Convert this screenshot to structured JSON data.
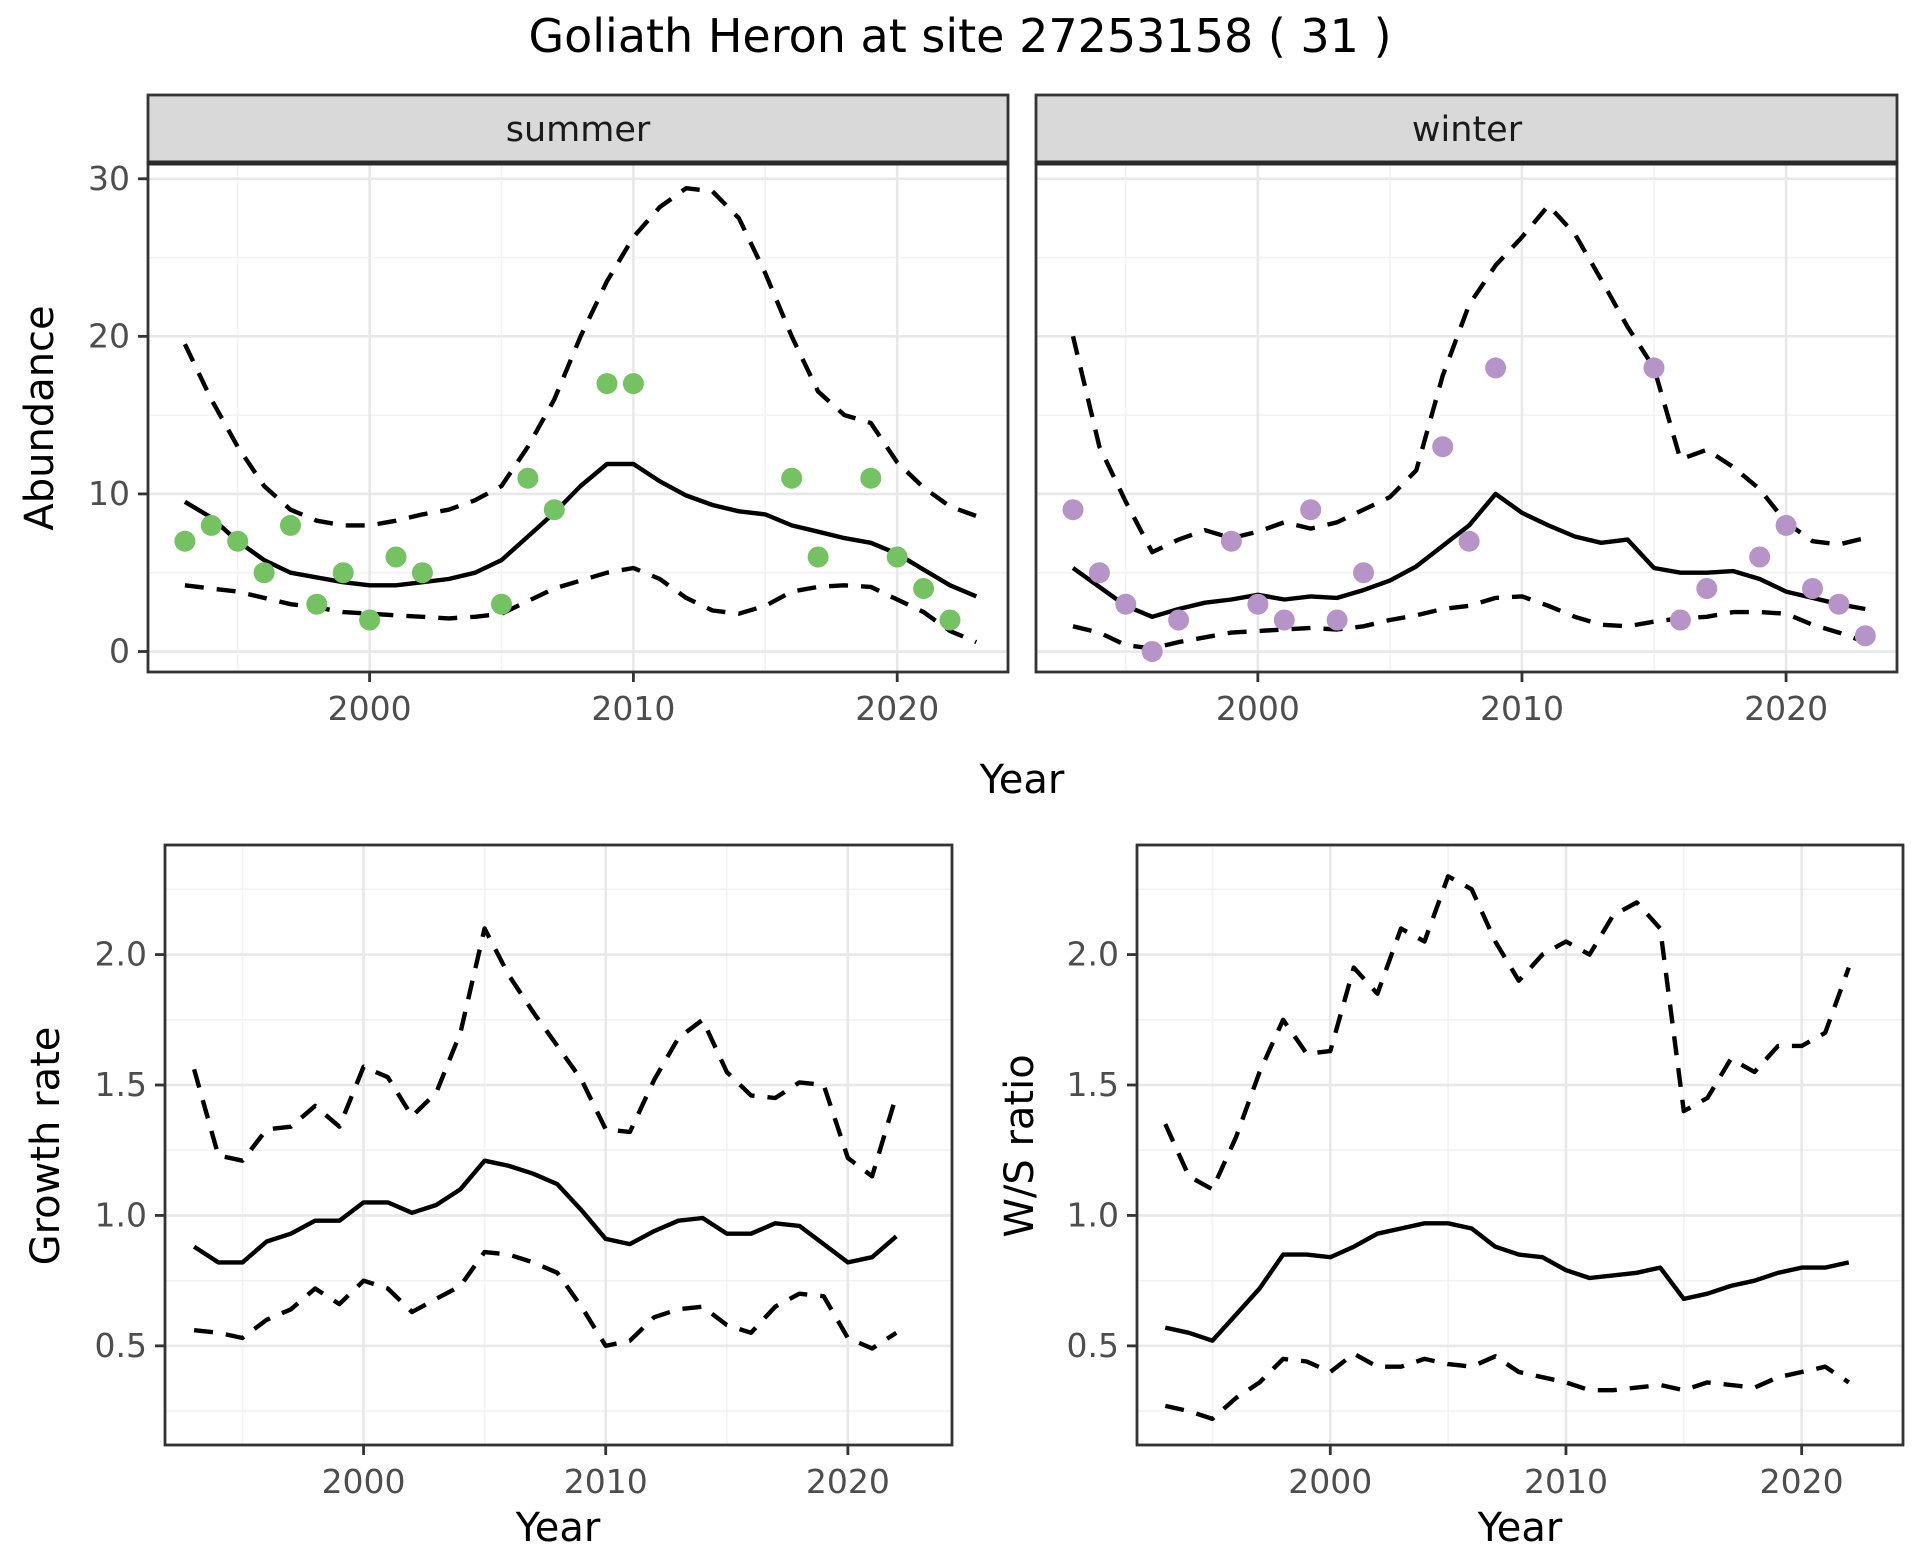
{
  "title": "Goliath Heron at site 27253158 ( 31 )",
  "colors": {
    "summer_point": "#74c262",
    "winter_point": "#b694c8",
    "line": "#000000",
    "grid_major": "#e8e8e8",
    "grid_minor": "#f2f2f2",
    "strip_bg": "#d9d9d9",
    "panel_border": "#333333",
    "tick_label": "#4d4d4d",
    "panel_bg": "#ffffff"
  },
  "chart_data": [
    {
      "id": "abundance_summer",
      "type": "line",
      "facet_label": "summer",
      "ylabel": "Abundance",
      "xlabel": "Year",
      "xlim": [
        1991.6,
        2024.2
      ],
      "ylim": [
        -1.3,
        31.0
      ],
      "x_ticks": [
        2000,
        2010,
        2020
      ],
      "x_tick_labels": [
        "2000",
        "2010",
        "2020"
      ],
      "x_minor": [
        1995,
        2005,
        2015
      ],
      "y_ticks": [
        0,
        10,
        20,
        30
      ],
      "y_tick_labels": [
        "0",
        "10",
        "20",
        "30"
      ],
      "y_minor": [
        5,
        15,
        25
      ],
      "show_y_tick_labels": true,
      "points": {
        "name": "observed abundance",
        "x": [
          1993,
          1994,
          1995,
          1996,
          1997,
          1998,
          1999,
          2000,
          2001,
          2002,
          2005,
          2006,
          2007,
          2009,
          2010,
          2016,
          2017,
          2019,
          2020,
          2021,
          2022
        ],
        "y": [
          7,
          8,
          7,
          5,
          8,
          3,
          5,
          2,
          6,
          5,
          3,
          11,
          9,
          17,
          17,
          11,
          6,
          11,
          6,
          4,
          2
        ]
      },
      "series": [
        {
          "name": "mean",
          "style": "solid",
          "x": [
            1993,
            1994,
            1995,
            1996,
            1997,
            1998,
            1999,
            2000,
            2001,
            2002,
            2003,
            2004,
            2005,
            2006,
            2007,
            2008,
            2009,
            2010,
            2011,
            2012,
            2013,
            2014,
            2015,
            2016,
            2017,
            2018,
            2019,
            2020,
            2021,
            2022,
            2023
          ],
          "y": [
            9.5,
            8.5,
            7.0,
            5.8,
            5.0,
            4.7,
            4.4,
            4.2,
            4.2,
            4.4,
            4.6,
            5.0,
            5.8,
            7.3,
            8.8,
            10.5,
            11.9,
            11.9,
            10.8,
            9.9,
            9.3,
            8.9,
            8.7,
            8.0,
            7.6,
            7.2,
            6.9,
            6.2,
            5.2,
            4.2,
            3.5
          ]
        },
        {
          "name": "upper CI",
          "style": "dashed",
          "x": [
            1993,
            1994,
            1995,
            1996,
            1997,
            1998,
            1999,
            2000,
            2001,
            2002,
            2003,
            2004,
            2005,
            2006,
            2007,
            2008,
            2009,
            2010,
            2011,
            2012,
            2013,
            2014,
            2015,
            2016,
            2017,
            2018,
            2019,
            2020,
            2021,
            2022,
            2023
          ],
          "y": [
            19.5,
            16.0,
            13.0,
            10.5,
            9.0,
            8.3,
            8.0,
            8.0,
            8.3,
            8.7,
            9.0,
            9.6,
            10.5,
            13.0,
            16.0,
            20.0,
            23.5,
            26.3,
            28.2,
            29.4,
            29.2,
            27.5,
            24.0,
            20.0,
            16.5,
            15.0,
            14.5,
            12.0,
            10.4,
            9.2,
            8.6
          ]
        },
        {
          "name": "lower CI",
          "style": "dashed",
          "x": [
            1993,
            1994,
            1995,
            1996,
            1997,
            1998,
            1999,
            2000,
            2001,
            2002,
            2003,
            2004,
            2005,
            2006,
            2007,
            2008,
            2009,
            2010,
            2011,
            2012,
            2013,
            2014,
            2015,
            2016,
            2017,
            2018,
            2019,
            2020,
            2021,
            2022,
            2023
          ],
          "y": [
            4.2,
            4.0,
            3.8,
            3.4,
            3.0,
            2.8,
            2.5,
            2.4,
            2.3,
            2.2,
            2.1,
            2.2,
            2.4,
            3.2,
            4.0,
            4.5,
            5.0,
            5.3,
            4.6,
            3.4,
            2.6,
            2.4,
            2.9,
            3.8,
            4.1,
            4.2,
            4.1,
            3.3,
            2.5,
            1.3,
            0.6
          ]
        }
      ]
    },
    {
      "id": "abundance_winter",
      "type": "line",
      "facet_label": "winter",
      "ylabel": "Abundance",
      "xlabel": "Year",
      "xlim": [
        1991.6,
        2024.2
      ],
      "ylim": [
        -1.3,
        31.0
      ],
      "x_ticks": [
        2000,
        2010,
        2020
      ],
      "x_tick_labels": [
        "2000",
        "2010",
        "2020"
      ],
      "x_minor": [
        1995,
        2005,
        2015
      ],
      "y_ticks": [
        0,
        10,
        20,
        30
      ],
      "y_tick_labels": [
        "0",
        "10",
        "20",
        "30"
      ],
      "y_minor": [
        5,
        15,
        25
      ],
      "show_y_tick_labels": false,
      "points": {
        "name": "observed abundance",
        "x": [
          1993,
          1994,
          1995,
          1996,
          1997,
          1999,
          2000,
          2001,
          2002,
          2003,
          2004,
          2007,
          2008,
          2009,
          2015,
          2016,
          2017,
          2019,
          2020,
          2021,
          2022,
          2023
        ],
        "y": [
          9,
          5,
          3,
          0,
          2,
          7,
          3,
          2,
          9,
          2,
          5,
          13,
          7,
          18,
          18,
          2,
          4,
          6,
          8,
          4,
          3,
          1
        ]
      },
      "series": [
        {
          "name": "mean",
          "style": "solid",
          "x": [
            1993,
            1994,
            1995,
            1996,
            1997,
            1998,
            1999,
            2000,
            2001,
            2002,
            2003,
            2004,
            2005,
            2006,
            2007,
            2008,
            2009,
            2010,
            2011,
            2012,
            2013,
            2014,
            2015,
            2016,
            2017,
            2018,
            2019,
            2020,
            2021,
            2022,
            2023
          ],
          "y": [
            5.3,
            4.1,
            2.9,
            2.2,
            2.7,
            3.1,
            3.3,
            3.6,
            3.3,
            3.5,
            3.4,
            3.9,
            4.5,
            5.4,
            6.7,
            8.0,
            10.0,
            8.8,
            8.0,
            7.3,
            6.9,
            7.1,
            5.3,
            5.0,
            5.0,
            5.1,
            4.6,
            3.8,
            3.4,
            3.0,
            2.7
          ]
        },
        {
          "name": "upper CI",
          "style": "dashed",
          "x": [
            1993,
            1994,
            1995,
            1996,
            1997,
            1998,
            1999,
            2000,
            2001,
            2002,
            2003,
            2004,
            2005,
            2006,
            2007,
            2008,
            2009,
            2010,
            2011,
            2012,
            2013,
            2014,
            2015,
            2016,
            2017,
            2018,
            2019,
            2020,
            2021,
            2022,
            2023
          ],
          "y": [
            20.0,
            13.0,
            9.5,
            6.3,
            7.1,
            7.7,
            7.2,
            7.6,
            8.2,
            7.8,
            8.2,
            9.0,
            9.8,
            11.5,
            17.5,
            22.0,
            24.5,
            26.3,
            28.3,
            26.5,
            23.6,
            20.6,
            18.0,
            12.2,
            12.8,
            11.7,
            10.3,
            8.2,
            7.0,
            6.8,
            7.2
          ]
        },
        {
          "name": "lower CI",
          "style": "dashed",
          "x": [
            1993,
            1994,
            1995,
            1996,
            1997,
            1998,
            1999,
            2000,
            2001,
            2002,
            2003,
            2004,
            2005,
            2006,
            2007,
            2008,
            2009,
            2010,
            2011,
            2012,
            2013,
            2014,
            2015,
            2016,
            2017,
            2018,
            2019,
            2020,
            2021,
            2022,
            2023
          ],
          "y": [
            1.6,
            1.2,
            0.4,
            0.2,
            0.6,
            0.9,
            1.2,
            1.3,
            1.4,
            1.5,
            1.4,
            1.6,
            2.0,
            2.3,
            2.7,
            2.9,
            3.4,
            3.5,
            2.9,
            2.2,
            1.7,
            1.6,
            1.9,
            2.1,
            2.2,
            2.5,
            2.5,
            2.4,
            1.7,
            1.2,
            0.6
          ]
        }
      ]
    },
    {
      "id": "growth_rate",
      "type": "line",
      "facet_label": null,
      "ylabel": "Growth rate",
      "xlabel": "Year",
      "xlim": [
        1991.8,
        2024.3
      ],
      "ylim": [
        0.12,
        2.42
      ],
      "x_ticks": [
        2000,
        2010,
        2020
      ],
      "x_tick_labels": [
        "2000",
        "2010",
        "2020"
      ],
      "x_minor": [
        1995,
        2005,
        2015
      ],
      "y_ticks": [
        0.5,
        1.0,
        1.5,
        2.0
      ],
      "y_tick_labels": [
        "0.5",
        "1.0",
        "1.5",
        "2.0"
      ],
      "y_minor": [
        0.25,
        0.75,
        1.25,
        1.75,
        2.25
      ],
      "show_y_tick_labels": true,
      "points": null,
      "series": [
        {
          "name": "mean growth rate",
          "style": "solid",
          "x": [
            1993,
            1994,
            1995,
            1996,
            1997,
            1998,
            1999,
            2000,
            2001,
            2002,
            2003,
            2004,
            2005,
            2006,
            2007,
            2008,
            2009,
            2010,
            2011,
            2012,
            2013,
            2014,
            2015,
            2016,
            2017,
            2018,
            2019,
            2020,
            2021,
            2022
          ],
          "y": [
            0.88,
            0.82,
            0.82,
            0.9,
            0.93,
            0.98,
            0.98,
            1.05,
            1.05,
            1.01,
            1.04,
            1.1,
            1.21,
            1.19,
            1.16,
            1.12,
            1.02,
            0.91,
            0.89,
            0.94,
            0.98,
            0.99,
            0.93,
            0.93,
            0.97,
            0.96,
            0.89,
            0.82,
            0.84,
            0.92
          ]
        },
        {
          "name": "upper CI",
          "style": "dashed",
          "x": [
            1993,
            1994,
            1995,
            1996,
            1997,
            1998,
            1999,
            2000,
            2001,
            2002,
            2003,
            2004,
            2005,
            2006,
            2007,
            2008,
            2009,
            2010,
            2011,
            2012,
            2013,
            2014,
            2015,
            2016,
            2017,
            2018,
            2019,
            2020,
            2021,
            2022
          ],
          "y": [
            1.56,
            1.23,
            1.21,
            1.33,
            1.34,
            1.42,
            1.34,
            1.57,
            1.53,
            1.38,
            1.47,
            1.7,
            2.1,
            1.92,
            1.78,
            1.65,
            1.52,
            1.33,
            1.32,
            1.52,
            1.68,
            1.75,
            1.55,
            1.46,
            1.45,
            1.51,
            1.5,
            1.22,
            1.15,
            1.46
          ]
        },
        {
          "name": "lower CI",
          "style": "dashed",
          "x": [
            1993,
            1994,
            1995,
            1996,
            1997,
            1998,
            1999,
            2000,
            2001,
            2002,
            2003,
            2004,
            2005,
            2006,
            2007,
            2008,
            2009,
            2010,
            2011,
            2012,
            2013,
            2014,
            2015,
            2016,
            2017,
            2018,
            2019,
            2020,
            2021,
            2022
          ],
          "y": [
            0.56,
            0.55,
            0.53,
            0.6,
            0.64,
            0.72,
            0.66,
            0.75,
            0.72,
            0.63,
            0.68,
            0.73,
            0.86,
            0.85,
            0.82,
            0.78,
            0.65,
            0.5,
            0.52,
            0.61,
            0.64,
            0.65,
            0.58,
            0.55,
            0.65,
            0.7,
            0.69,
            0.53,
            0.49,
            0.55
          ]
        }
      ]
    },
    {
      "id": "ws_ratio",
      "type": "line",
      "facet_label": null,
      "ylabel": "W/S ratio",
      "xlabel": "Year",
      "xlim": [
        1991.8,
        2024.3
      ],
      "ylim": [
        0.12,
        2.42
      ],
      "x_ticks": [
        2000,
        2010,
        2020
      ],
      "x_tick_labels": [
        "2000",
        "2010",
        "2020"
      ],
      "x_minor": [
        1995,
        2005,
        2015
      ],
      "y_ticks": [
        0.5,
        1.0,
        1.5,
        2.0
      ],
      "y_tick_labels": [
        "0.5",
        "1.0",
        "1.5",
        "2.0"
      ],
      "y_minor": [
        0.25,
        0.75,
        1.25,
        1.75,
        2.25
      ],
      "show_y_tick_labels": true,
      "points": null,
      "series": [
        {
          "name": "mean W/S ratio",
          "style": "solid",
          "x": [
            1993,
            1994,
            1995,
            1996,
            1997,
            1998,
            1999,
            2000,
            2001,
            2002,
            2003,
            2004,
            2005,
            2006,
            2007,
            2008,
            2009,
            2010,
            2011,
            2012,
            2013,
            2014,
            2015,
            2016,
            2017,
            2018,
            2019,
            2020,
            2021,
            2022
          ],
          "y": [
            0.57,
            0.55,
            0.52,
            0.62,
            0.72,
            0.85,
            0.85,
            0.84,
            0.88,
            0.93,
            0.95,
            0.97,
            0.97,
            0.95,
            0.88,
            0.85,
            0.84,
            0.79,
            0.76,
            0.77,
            0.78,
            0.8,
            0.68,
            0.7,
            0.73,
            0.75,
            0.78,
            0.8,
            0.8,
            0.82
          ]
        },
        {
          "name": "upper CI",
          "style": "dashed",
          "x": [
            1993,
            1994,
            1995,
            1996,
            1997,
            1998,
            1999,
            2000,
            2001,
            2002,
            2003,
            2004,
            2005,
            2006,
            2007,
            2008,
            2009,
            2010,
            2011,
            2012,
            2013,
            2014,
            2015,
            2016,
            2017,
            2018,
            2019,
            2020,
            2021,
            2022
          ],
          "y": [
            1.35,
            1.15,
            1.1,
            1.3,
            1.55,
            1.75,
            1.62,
            1.63,
            1.95,
            1.85,
            2.1,
            2.05,
            2.3,
            2.25,
            2.05,
            1.9,
            2.0,
            2.05,
            2.0,
            2.15,
            2.2,
            2.1,
            1.4,
            1.45,
            1.6,
            1.55,
            1.65,
            1.65,
            1.7,
            1.95
          ]
        },
        {
          "name": "lower CI",
          "style": "dashed",
          "x": [
            1993,
            1994,
            1995,
            1996,
            1997,
            1998,
            1999,
            2000,
            2001,
            2002,
            2003,
            2004,
            2005,
            2006,
            2007,
            2008,
            2009,
            2010,
            2011,
            2012,
            2013,
            2014,
            2015,
            2016,
            2017,
            2018,
            2019,
            2020,
            2021,
            2022
          ],
          "y": [
            0.27,
            0.25,
            0.22,
            0.3,
            0.36,
            0.45,
            0.44,
            0.4,
            0.47,
            0.42,
            0.42,
            0.45,
            0.43,
            0.42,
            0.46,
            0.4,
            0.38,
            0.36,
            0.33,
            0.33,
            0.34,
            0.35,
            0.33,
            0.36,
            0.35,
            0.34,
            0.38,
            0.4,
            0.42,
            0.36
          ]
        }
      ]
    }
  ]
}
